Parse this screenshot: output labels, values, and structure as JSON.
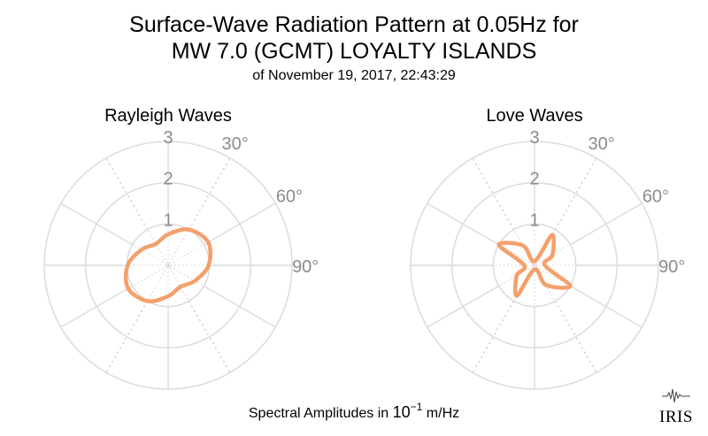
{
  "title_line1": "Surface-Wave Radiation Pattern at 0.05Hz for",
  "title_line2": "MW 7.0 (GCMT) LOYALTY ISLANDS",
  "subtitle": "of November 19, 2017, 22:43:29",
  "footer_prefix": "Spectral Amplitudes in ",
  "footer_base": "10",
  "footer_exp": "−1",
  "footer_unit": " m/Hz",
  "logo_text": "IRIS",
  "colors": {
    "curve": "#f4a06c",
    "grid_solid": "#dddddd",
    "grid_dotted": "#cccccc",
    "tick": "#8c8c8c"
  },
  "chart_data": [
    {
      "type": "polar",
      "title": "Rayleigh Waves",
      "rlim": [
        0,
        3
      ],
      "radial_ticks": [
        "1",
        "2",
        "3"
      ],
      "angle_ticks": [
        "30°",
        "60°",
        "90°"
      ],
      "theta_deg": [
        0,
        30,
        60,
        90,
        120,
        150,
        180,
        210,
        240,
        270,
        300,
        330
      ],
      "r": [
        0.75,
        1.0,
        1.12,
        0.98,
        0.75,
        0.6,
        0.75,
        1.0,
        1.12,
        0.98,
        0.75,
        0.6
      ]
    },
    {
      "type": "polar",
      "title": "Love Waves",
      "rlim": [
        0,
        3
      ],
      "radial_ticks": [
        "1",
        "2",
        "3"
      ],
      "angle_ticks": [
        "30°",
        "60°",
        "90°"
      ],
      "theta_deg": [
        0,
        30,
        60,
        90,
        120,
        150,
        180,
        210,
        240,
        270,
        300,
        330
      ],
      "r": [
        0.1,
        0.85,
        0.5,
        0.25,
        1.0,
        0.55,
        0.1,
        0.85,
        0.5,
        0.25,
        1.0,
        0.55
      ]
    }
  ]
}
